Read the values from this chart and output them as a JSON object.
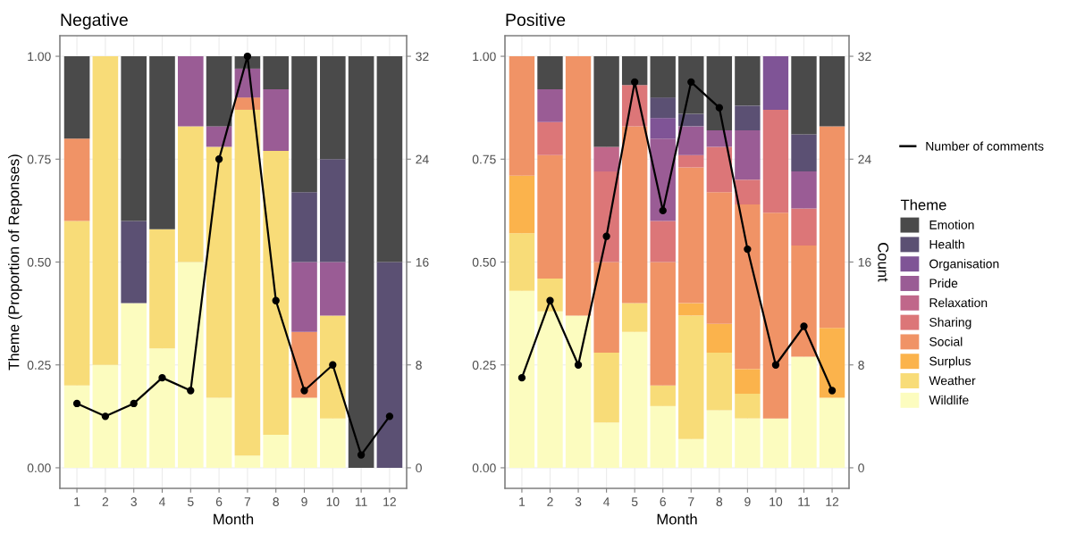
{
  "chart_data": [
    {
      "type": "bar",
      "title": "Negative",
      "xlabel": "Month",
      "ylabel": "Theme (Proportion of Reponses)",
      "stacked": true,
      "grid": true,
      "categories": [
        "1",
        "2",
        "3",
        "4",
        "5",
        "6",
        "7",
        "8",
        "9",
        "10",
        "11",
        "12"
      ],
      "ylim": [
        -0.05,
        1.05
      ],
      "yticks": [
        {
          "value": 0,
          "label": "0.00"
        },
        {
          "value": 0.25,
          "label": "0.25"
        },
        {
          "value": 0.5,
          "label": "0.50"
        },
        {
          "value": 0.75,
          "label": "0.75"
        },
        {
          "value": 1,
          "label": "1.00"
        }
      ],
      "y2lim": [
        -1.6,
        33.6
      ],
      "y2ticks": [
        0,
        8,
        16,
        24,
        32
      ],
      "series": [
        {
          "color": "#fcfcbf",
          "values": [
            0.2,
            0.25,
            0.4,
            0.29,
            0.5,
            0.17,
            0.03,
            0.08,
            0.17,
            0.12,
            null,
            null
          ]
        },
        {
          "color": "#f8dc78",
          "values": [
            0.4,
            0.75,
            null,
            0.29,
            0.33,
            0.61,
            0.84,
            0.69,
            null,
            0.25,
            null,
            null
          ]
        },
        {
          "color": "#f09366",
          "values": [
            0.2,
            null,
            null,
            null,
            null,
            null,
            0.03,
            null,
            0.16,
            null,
            null,
            null
          ]
        },
        {
          "color": "#9a5c95",
          "values": [
            null,
            null,
            null,
            null,
            0.17,
            0.05,
            0.07,
            0.15,
            0.17,
            0.13,
            null,
            null
          ]
        },
        {
          "color": "#5b5073",
          "values": [
            null,
            null,
            0.2,
            null,
            null,
            null,
            null,
            null,
            0.17,
            0.25,
            null,
            0.5
          ]
        },
        {
          "color": "#4a4a4a",
          "values": [
            0.2,
            null,
            0.4,
            0.42,
            null,
            0.17,
            0.03,
            0.08,
            0.33,
            0.25,
            1,
            0.5
          ]
        },
        {
          "type": "line",
          "axis": "y2",
          "color": "#000000",
          "marker": "circle",
          "values": [
            5,
            4,
            5,
            7,
            6,
            24,
            32,
            13,
            6,
            8,
            1,
            4
          ]
        }
      ]
    },
    {
      "type": "bar",
      "title": "Positive",
      "xlabel": "Month",
      "y2label": "Count",
      "stacked": true,
      "grid": true,
      "legend": "right",
      "legend_title": "Theme",
      "categories": [
        "1",
        "2",
        "3",
        "4",
        "5",
        "6",
        "7",
        "8",
        "9",
        "10",
        "11",
        "12"
      ],
      "ylim": [
        -0.05,
        1.05
      ],
      "yticks": [
        {
          "value": 0,
          "label": "0.00"
        },
        {
          "value": 0.25,
          "label": "0.25"
        },
        {
          "value": 0.5,
          "label": "0.50"
        },
        {
          "value": 0.75,
          "label": "0.75"
        },
        {
          "value": 1,
          "label": "1.00"
        }
      ],
      "y2lim": [
        -1.6,
        33.6
      ],
      "y2ticks": [
        0,
        8,
        16,
        24,
        32
      ],
      "series": [
        {
          "name": "Wildlife",
          "color": "#fcfcbf",
          "values": [
            0.43,
            0.38,
            0.37,
            0.11,
            0.33,
            0.15,
            0.07,
            0.14,
            0.12,
            0.12,
            0.27,
            0.17
          ]
        },
        {
          "name": "Weather",
          "color": "#f8dc78",
          "values": [
            0.14,
            0.08,
            null,
            0.17,
            0.07,
            0.05,
            0.3,
            0.14,
            0.06,
            null,
            null,
            null
          ]
        },
        {
          "name": "Surplus",
          "color": "#fbb34c",
          "values": [
            0.14,
            null,
            null,
            null,
            null,
            null,
            0.03,
            0.07,
            0.06,
            null,
            null,
            0.17
          ]
        },
        {
          "name": "Social",
          "color": "#f09366",
          "values": [
            0.29,
            0.3,
            0.63,
            0.22,
            0.43,
            0.3,
            0.33,
            0.32,
            0.4,
            0.5,
            0.27,
            0.49
          ]
        },
        {
          "name": "Sharing",
          "color": "#dc7678",
          "values": [
            null,
            0.08,
            null,
            0.22,
            0.1,
            0.1,
            0.03,
            0.11,
            0.06,
            0.25,
            0.09,
            null
          ]
        },
        {
          "name": "Relaxation",
          "color": "#c0678a",
          "values": [
            null,
            null,
            null,
            0.06,
            null,
            null,
            null,
            null,
            null,
            null,
            null,
            null
          ]
        },
        {
          "name": "Pride",
          "color": "#9a5c95",
          "values": [
            null,
            0.08,
            null,
            null,
            null,
            0.2,
            0.07,
            0.04,
            0.12,
            null,
            0.09,
            null
          ]
        },
        {
          "name": "Organisation",
          "color": "#7f5496",
          "values": [
            null,
            null,
            null,
            null,
            null,
            0.05,
            null,
            null,
            null,
            0.13,
            null,
            null
          ]
        },
        {
          "name": "Health",
          "color": "#5b5073",
          "values": [
            null,
            null,
            null,
            null,
            null,
            0.05,
            0.03,
            null,
            0.06,
            null,
            0.09,
            null
          ]
        },
        {
          "name": "Emotion",
          "color": "#4a4a4a",
          "values": [
            null,
            0.08,
            null,
            0.22,
            0.07,
            0.1,
            0.14,
            0.18,
            0.12,
            null,
            0.19,
            0.17
          ]
        },
        {
          "name": "Number of comments",
          "type": "line",
          "axis": "y2",
          "color": "#000000",
          "marker": "circle",
          "values": [
            7,
            13,
            8,
            18,
            30,
            20,
            30,
            28,
            17,
            8,
            11,
            6
          ]
        }
      ]
    }
  ]
}
